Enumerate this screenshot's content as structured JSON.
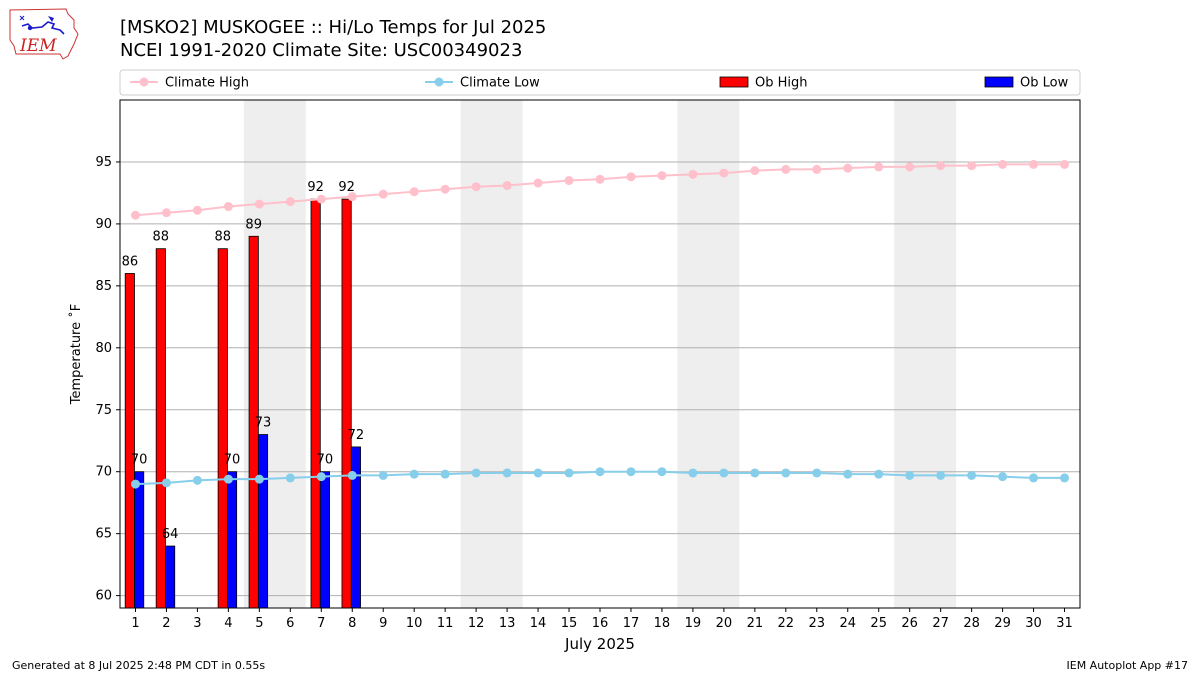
{
  "header": {
    "logo_text": "IEM",
    "title_line1": "[MSKO2] MUSKOGEE :: Hi/Lo Temps for Jul 2025",
    "title_line2": "NCEI 1991-2020 Climate Site: USC00349023"
  },
  "footer": {
    "left": "Generated at 8 Jul 2025 2:48 PM CDT in 0.55s",
    "right": "IEM Autoplot App #17"
  },
  "chart_data": {
    "type": "bar",
    "title": "[MSKO2] MUSKOGEE :: Hi/Lo Temps for Jul 2025",
    "subtitle": "NCEI 1991-2020 Climate Site: USC00349023",
    "xlabel": "July 2025",
    "ylabel": "Temperature ˚F",
    "ylim": [
      59,
      100
    ],
    "yticks": [
      60,
      65,
      70,
      75,
      80,
      85,
      90,
      95
    ],
    "grid": true,
    "legend_position": "top",
    "days": [
      1,
      2,
      3,
      4,
      5,
      6,
      7,
      8,
      9,
      10,
      11,
      12,
      13,
      14,
      15,
      16,
      17,
      18,
      19,
      20,
      21,
      22,
      23,
      24,
      25,
      26,
      27,
      28,
      29,
      30,
      31
    ],
    "weekend_days": [
      [
        5,
        6
      ],
      [
        12,
        13
      ],
      [
        19,
        20
      ],
      [
        26,
        27
      ]
    ],
    "series": [
      {
        "name": "Climate High",
        "kind": "line",
        "color": "#ffc0cb",
        "values": [
          90.7,
          90.9,
          91.1,
          91.4,
          91.6,
          91.8,
          92.0,
          92.2,
          92.4,
          92.6,
          92.8,
          93.0,
          93.1,
          93.3,
          93.5,
          93.6,
          93.8,
          93.9,
          94.0,
          94.1,
          94.3,
          94.4,
          94.4,
          94.5,
          94.6,
          94.6,
          94.7,
          94.7,
          94.8,
          94.8,
          94.8
        ]
      },
      {
        "name": "Climate Low",
        "kind": "line",
        "color": "#87ceeb",
        "values": [
          69.0,
          69.1,
          69.3,
          69.4,
          69.4,
          69.5,
          69.6,
          69.7,
          69.7,
          69.8,
          69.8,
          69.9,
          69.9,
          69.9,
          69.9,
          70.0,
          70.0,
          70.0,
          69.9,
          69.9,
          69.9,
          69.9,
          69.9,
          69.8,
          69.8,
          69.7,
          69.7,
          69.7,
          69.6,
          69.5,
          69.5
        ]
      },
      {
        "name": "Ob High",
        "kind": "bar",
        "color": "#ff0000",
        "values": [
          86,
          88,
          null,
          88,
          89,
          null,
          92,
          92,
          null,
          null,
          null,
          null,
          null,
          null,
          null,
          null,
          null,
          null,
          null,
          null,
          null,
          null,
          null,
          null,
          null,
          null,
          null,
          null,
          null,
          null,
          null
        ]
      },
      {
        "name": "Ob Low",
        "kind": "bar",
        "color": "#0000ff",
        "values": [
          70,
          64,
          null,
          70,
          73,
          null,
          70,
          72,
          null,
          null,
          null,
          null,
          null,
          null,
          null,
          null,
          null,
          null,
          null,
          null,
          null,
          null,
          null,
          null,
          null,
          null,
          null,
          null,
          null,
          null,
          null
        ]
      }
    ]
  }
}
